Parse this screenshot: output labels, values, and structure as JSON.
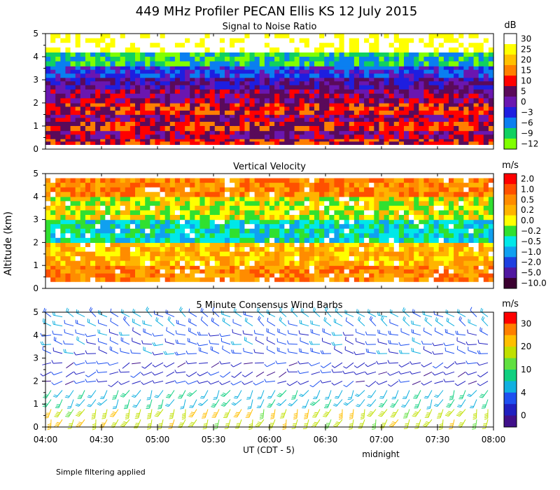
{
  "figure": {
    "title": "449 MHz Profiler PECAN Ellis KS 12 July 2015",
    "ylabel": "Altitude (km)",
    "xlabel": "UT  (CDT - 5)",
    "note_midnight": "midnight",
    "footer": "Simple filtering applied"
  },
  "chart_data": [
    {
      "type": "heatmap",
      "title": "Signal to Noise Ratio",
      "unit": "dB",
      "ylim": [
        0,
        5
      ],
      "yticks": [
        "0",
        "1",
        "2",
        "3",
        "4",
        "5"
      ],
      "xlim": [
        "04:00",
        "08:00"
      ],
      "colorbar": {
        "labels": [
          "30",
          "25",
          "20",
          "15",
          "10",
          "5",
          "0",
          "−3",
          "−6",
          "−9",
          "−12"
        ],
        "colors": [
          "#ffffff",
          "#ffff00",
          "#ffc000",
          "#ff7f00",
          "#ff0000",
          "#5a0a5a",
          "#6a16b0",
          "#1e1ee0",
          "#0a7ff0",
          "#10d060",
          "#80ff00"
        ]
      },
      "layers": [
        {
          "range_km": [
            0.2,
            0.45
          ],
          "snr_db": 10
        },
        {
          "range_km": [
            0.45,
            0.8
          ],
          "snr_db": 5
        },
        {
          "range_km": [
            0.8,
            1.2
          ],
          "snr_db": 10
        },
        {
          "range_km": [
            1.2,
            1.5
          ],
          "snr_db": 5
        },
        {
          "range_km": [
            1.5,
            2.0
          ],
          "snr_db": 10
        },
        {
          "range_km": [
            2.0,
            2.6
          ],
          "snr_db": 5
        },
        {
          "range_km": [
            2.6,
            3.1
          ],
          "snr_db": 0
        },
        {
          "range_km": [
            3.1,
            3.6
          ],
          "snr_db": -3
        },
        {
          "range_km": [
            3.6,
            4.2
          ],
          "snr_db": -9
        },
        {
          "range_km": [
            4.2,
            5.0
          ],
          "snr_db": 30
        }
      ]
    },
    {
      "type": "heatmap",
      "title": "Vertical Velocity",
      "unit": "m/s",
      "ylim": [
        0,
        5
      ],
      "yticks": [
        "0",
        "1",
        "2",
        "3",
        "4",
        "5"
      ],
      "xlim": [
        "04:00",
        "08:00"
      ],
      "colorbar": {
        "labels": [
          "2.0",
          "1.0",
          "0.5",
          "0.2",
          "0.0",
          "−0.2",
          "−0.5",
          "−1.0",
          "−2.0",
          "−5.0",
          "−10.0"
        ],
        "colors": [
          "#ff0000",
          "#ff5000",
          "#ff8c00",
          "#ffb400",
          "#ffff00",
          "#30e030",
          "#00e8e8",
          "#10a0f0",
          "#1e40e0",
          "#5018a0",
          "#3a0030"
        ]
      },
      "layers": [
        {
          "range_km": [
            0.3,
            1.0
          ],
          "velocity_ms": 0.5
        },
        {
          "range_km": [
            1.0,
            2.0
          ],
          "velocity_ms": 0.2
        },
        {
          "range_km": [
            2.0,
            3.0
          ],
          "velocity_ms": -0.5
        },
        {
          "range_km": [
            3.0,
            4.0
          ],
          "velocity_ms": 0.0
        },
        {
          "range_km": [
            4.0,
            4.8
          ],
          "velocity_ms": 0.5
        }
      ]
    },
    {
      "type": "scatter",
      "title": "5 Minute Consensus Wind Barbs",
      "unit": "m/s",
      "ylim": [
        0,
        5
      ],
      "yticks": [
        "0",
        "1",
        "2",
        "3",
        "4",
        "5"
      ],
      "xlim": [
        "04:00",
        "08:00"
      ],
      "xticks": [
        "04:00",
        "04:30",
        "05:00",
        "05:30",
        "06:00",
        "06:30",
        "07:00",
        "07:30",
        "08:00"
      ],
      "colorbar": {
        "labels": [
          "30",
          "20",
          "10",
          "4",
          "0"
        ],
        "colors": [
          "#ff0000",
          "#ff7f00",
          "#ffbf00",
          "#c0e000",
          "#60e040",
          "#10d080",
          "#10b0e0",
          "#1e50f0",
          "#2020c0",
          "#40108a"
        ]
      },
      "layers": [
        {
          "range_km": [
            0.1,
            1.0
          ],
          "speed_ms": 22,
          "from_direction_deg": 200
        },
        {
          "range_km": [
            1.0,
            1.8
          ],
          "speed_ms": 12,
          "from_direction_deg": 210
        },
        {
          "range_km": [
            1.8,
            3.0
          ],
          "speed_ms": 4,
          "from_direction_deg": 250
        },
        {
          "range_km": [
            3.0,
            4.2
          ],
          "speed_ms": 7,
          "from_direction_deg": 280
        },
        {
          "range_km": [
            4.2,
            5.0
          ],
          "speed_ms": 9,
          "from_direction_deg": 300
        }
      ]
    }
  ]
}
